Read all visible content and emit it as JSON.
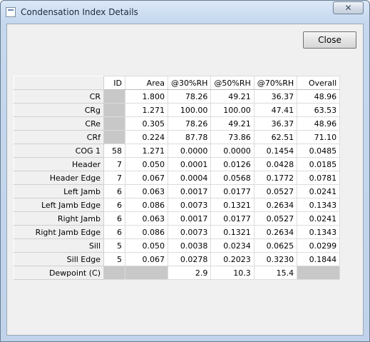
{
  "window": {
    "title": "Condensation Index Details",
    "close_glyph": "✕"
  },
  "buttons": {
    "close_label": "Close"
  },
  "table": {
    "columns": [
      "ID",
      "Area",
      "@30%RH",
      "@50%RH",
      "@70%RH",
      "Overall"
    ],
    "rows": [
      {
        "label": "CR",
        "cells": [
          "",
          "1.800",
          "78.26",
          "49.21",
          "36.37",
          "48.96"
        ]
      },
      {
        "label": "CRg",
        "cells": [
          "",
          "1.271",
          "100.00",
          "100.00",
          "47.41",
          "63.53"
        ]
      },
      {
        "label": "CRe",
        "cells": [
          "",
          "0.305",
          "78.26",
          "49.21",
          "36.37",
          "48.96"
        ]
      },
      {
        "label": "CRf",
        "cells": [
          "",
          "0.224",
          "87.78",
          "73.86",
          "62.51",
          "71.10"
        ]
      },
      {
        "label": "COG 1",
        "cells": [
          "58",
          "1.271",
          "0.0000",
          "0.0000",
          "0.1454",
          "0.0485"
        ]
      },
      {
        "label": "Header",
        "cells": [
          "7",
          "0.050",
          "0.0001",
          "0.0126",
          "0.0428",
          "0.0185"
        ]
      },
      {
        "label": "Header Edge",
        "cells": [
          "7",
          "0.067",
          "0.0004",
          "0.0568",
          "0.1772",
          "0.0781"
        ]
      },
      {
        "label": "Left Jamb",
        "cells": [
          "6",
          "0.063",
          "0.0017",
          "0.0177",
          "0.0527",
          "0.0241"
        ]
      },
      {
        "label": "Left Jamb Edge",
        "cells": [
          "6",
          "0.086",
          "0.0073",
          "0.1321",
          "0.2634",
          "0.1343"
        ]
      },
      {
        "label": "Right Jamb",
        "cells": [
          "6",
          "0.063",
          "0.0017",
          "0.0177",
          "0.0527",
          "0.0241"
        ]
      },
      {
        "label": "Right Jamb Edge",
        "cells": [
          "6",
          "0.086",
          "0.0073",
          "0.1321",
          "0.2634",
          "0.1343"
        ]
      },
      {
        "label": "Sill",
        "cells": [
          "5",
          "0.050",
          "0.0038",
          "0.0234",
          "0.0625",
          "0.0299"
        ]
      },
      {
        "label": "Sill Edge",
        "cells": [
          "5",
          "0.067",
          "0.0278",
          "0.2023",
          "0.3230",
          "0.1844"
        ]
      },
      {
        "label": "Dewpoint (C)",
        "cells": [
          "",
          "",
          "2.9",
          "10.3",
          "15.4",
          ""
        ]
      }
    ],
    "shaded_cells": [
      [
        0,
        0
      ],
      [
        1,
        0
      ],
      [
        2,
        0
      ],
      [
        3,
        0
      ],
      [
        13,
        0
      ],
      [
        13,
        1
      ],
      [
        13,
        5
      ]
    ]
  }
}
